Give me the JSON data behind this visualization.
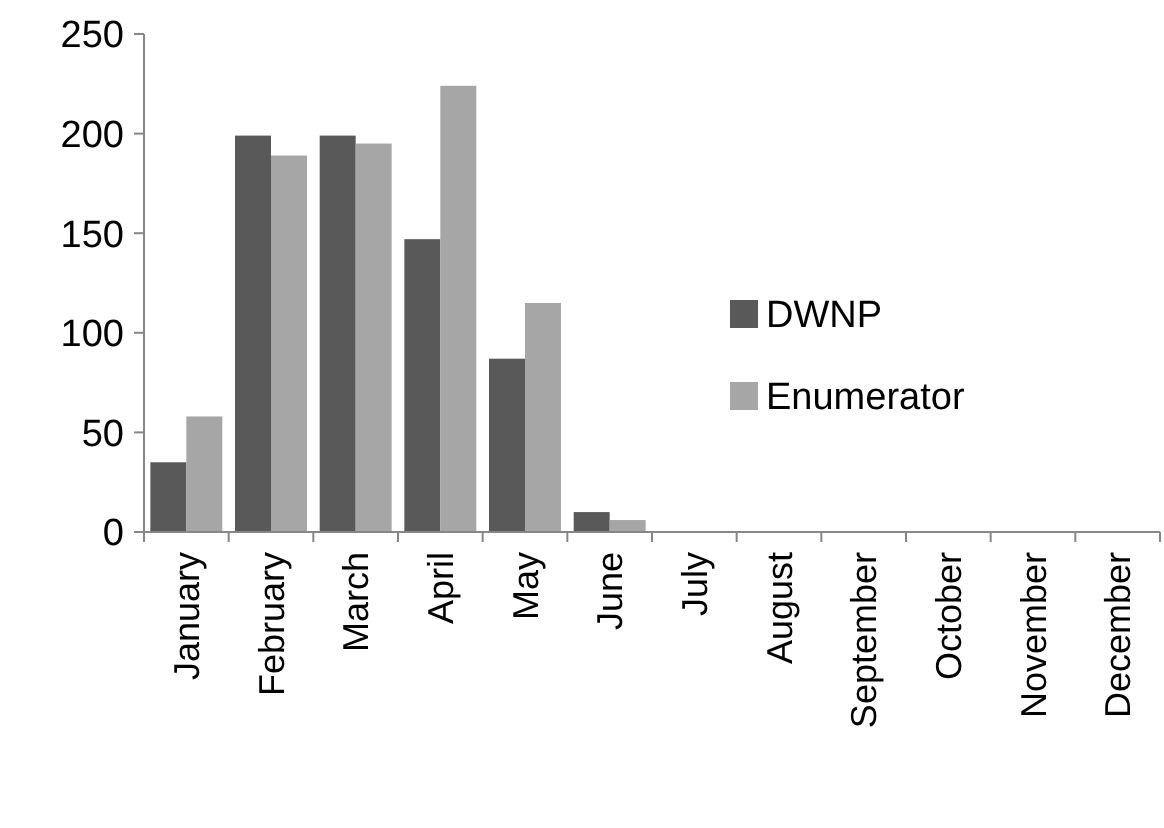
{
  "chart_data": {
    "type": "bar",
    "categories": [
      "January",
      "February",
      "March",
      "April",
      "May",
      "June",
      "July",
      "August",
      "September",
      "October",
      "November",
      "December"
    ],
    "series": [
      {
        "name": "DWNP",
        "color": "#595959",
        "values": [
          35,
          199,
          199,
          147,
          87,
          10,
          0,
          0,
          0,
          0,
          0,
          0
        ]
      },
      {
        "name": "Enumerator",
        "color": "#a6a6a6",
        "values": [
          58,
          189,
          195,
          224,
          115,
          6,
          0,
          0,
          0,
          0,
          0,
          0
        ]
      }
    ],
    "ylim": [
      0,
      250
    ],
    "yticks": [
      0,
      50,
      100,
      150,
      200,
      250
    ],
    "grid": false,
    "legend": "right"
  }
}
